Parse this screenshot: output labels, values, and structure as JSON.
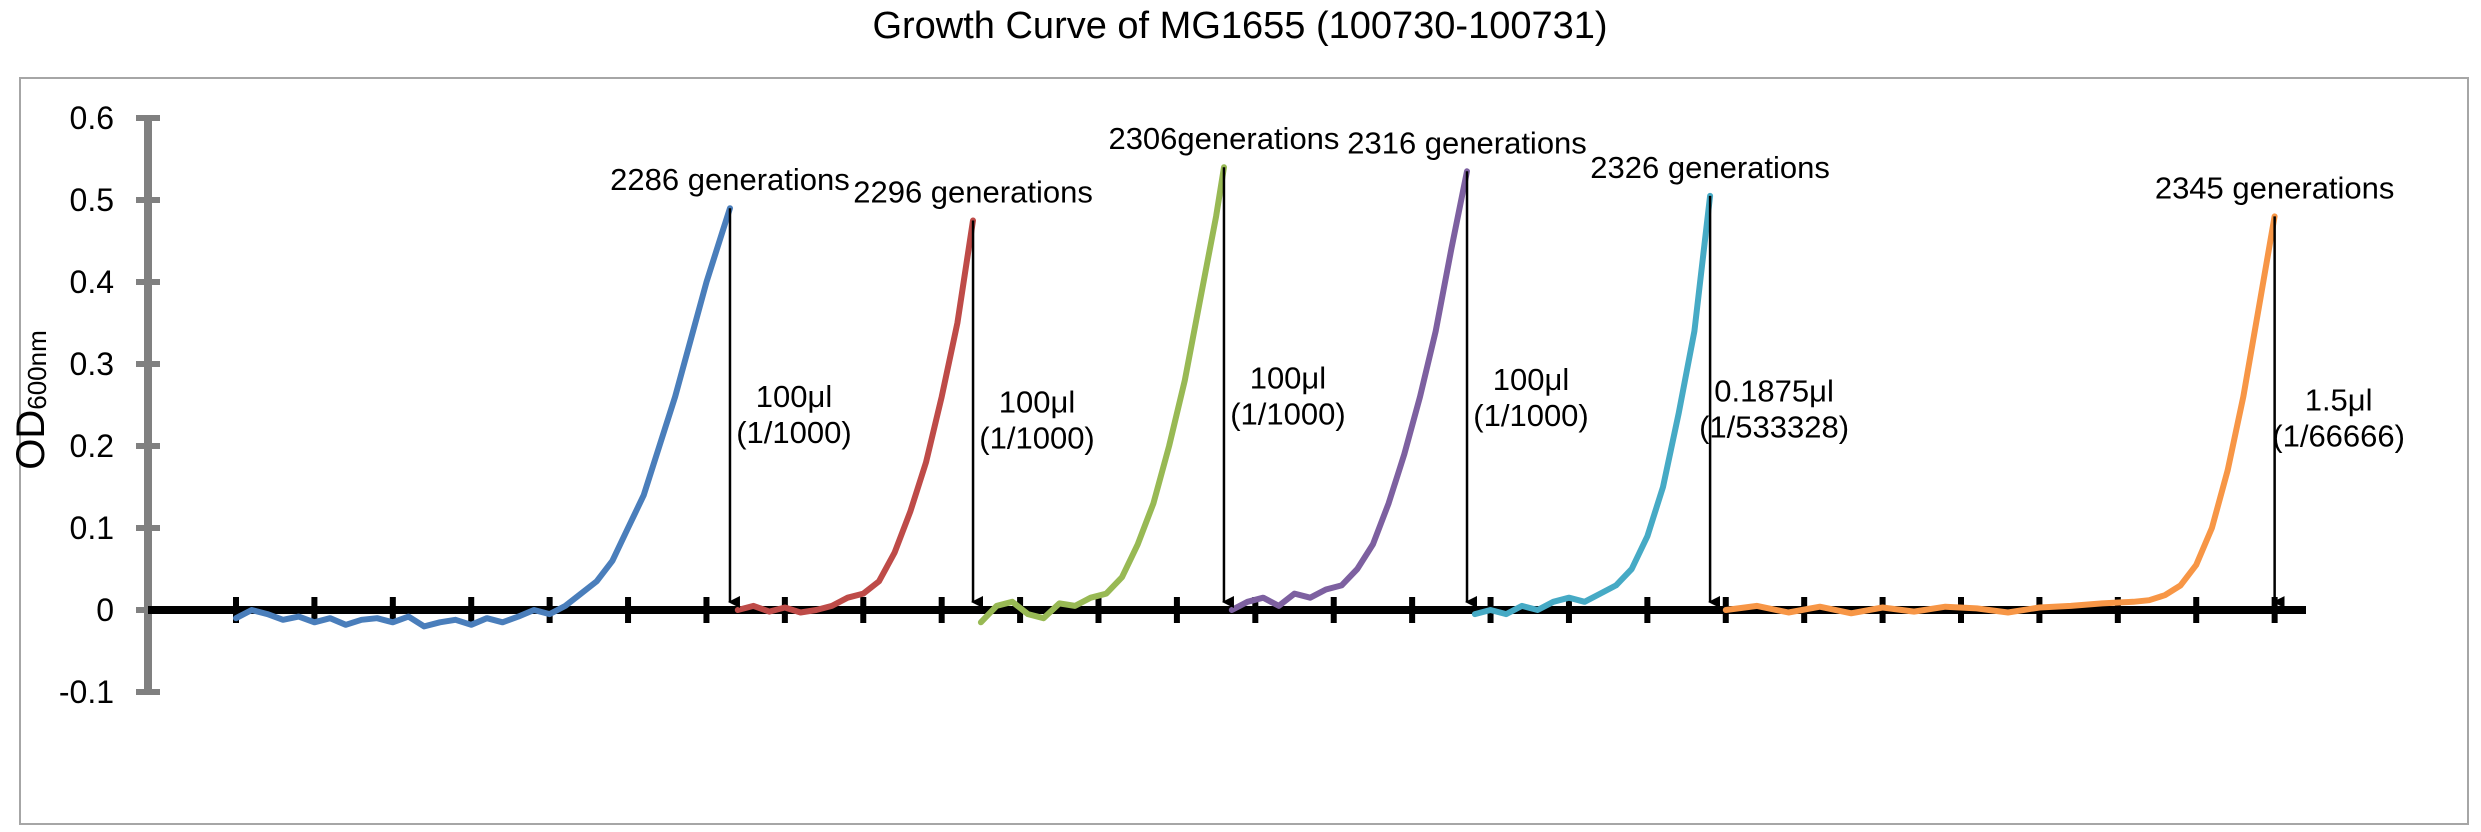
{
  "chart_data": {
    "type": "line",
    "title": "Growth Curve of MG1655 (100730-100731)",
    "ylabel": {
      "main": "OD",
      "sub": "600nm"
    },
    "ylim": [
      -0.1,
      0.6
    ],
    "yticks": [
      -0.1,
      0,
      0.1,
      0.2,
      0.3,
      0.4,
      0.5,
      0.6
    ],
    "ytick_labels": [
      "-0.1",
      "0",
      "0.1",
      "0.2",
      "0.3",
      "0.4",
      "0.5",
      "0.6"
    ],
    "xlim": [
      0,
      132
    ],
    "xticks": [
      0,
      5,
      10,
      15,
      20,
      25,
      30,
      35,
      40,
      45,
      50,
      55,
      60,
      65,
      70,
      75,
      80,
      85,
      90,
      95,
      100,
      105,
      110,
      115,
      120,
      125,
      130
    ],
    "grid": false,
    "legend": "none",
    "series": [
      {
        "color": "#4a7ebb",
        "x": [
          0,
          1,
          2,
          3,
          4,
          5,
          6,
          7,
          8,
          9,
          10,
          11,
          12,
          13,
          14,
          15,
          16,
          17,
          18,
          19,
          20,
          21,
          22,
          23,
          24,
          25,
          26,
          27,
          28,
          29,
          30,
          31,
          31.5
        ],
        "values": [
          -0.01,
          0.0,
          -0.005,
          -0.012,
          -0.008,
          -0.015,
          -0.01,
          -0.018,
          -0.012,
          -0.01,
          -0.015,
          -0.008,
          -0.02,
          -0.015,
          -0.012,
          -0.018,
          -0.01,
          -0.015,
          -0.008,
          0.0,
          -0.005,
          0.005,
          0.02,
          0.035,
          0.06,
          0.1,
          0.14,
          0.2,
          0.26,
          0.33,
          0.4,
          0.46,
          0.49
        ]
      },
      {
        "color": "#be4b48",
        "x": [
          32,
          33,
          34,
          35,
          36,
          37,
          38,
          39,
          40,
          41,
          42,
          43,
          44,
          45,
          46,
          47
        ],
        "values": [
          0.0,
          0.005,
          -0.002,
          0.003,
          -0.003,
          0.0,
          0.005,
          0.015,
          0.02,
          0.035,
          0.07,
          0.12,
          0.18,
          0.26,
          0.35,
          0.475
        ]
      },
      {
        "color": "#98b954",
        "x": [
          47.5,
          48.5,
          49.5,
          50.5,
          51.5,
          52.5,
          53.5,
          54.5,
          55.5,
          56.5,
          57.5,
          58.5,
          59.5,
          60.5,
          61.5,
          62.5,
          63
        ],
        "values": [
          -0.015,
          0.005,
          0.01,
          -0.005,
          -0.01,
          0.008,
          0.005,
          0.015,
          0.02,
          0.04,
          0.08,
          0.13,
          0.2,
          0.28,
          0.38,
          0.48,
          0.54
        ]
      },
      {
        "color": "#7d60a0",
        "x": [
          63.5,
          64.5,
          65.5,
          66.5,
          67.5,
          68.5,
          69.5,
          70.5,
          71.5,
          72.5,
          73.5,
          74.5,
          75.5,
          76.5,
          77.5,
          78.5
        ],
        "values": [
          0.0,
          0.01,
          0.015,
          0.005,
          0.02,
          0.015,
          0.025,
          0.03,
          0.05,
          0.08,
          0.13,
          0.19,
          0.26,
          0.34,
          0.44,
          0.535
        ]
      },
      {
        "color": "#46aac5",
        "x": [
          79,
          80,
          81,
          82,
          83,
          84,
          85,
          86,
          87,
          88,
          89,
          90,
          91,
          92,
          93,
          94
        ],
        "values": [
          -0.005,
          0.0,
          -0.005,
          0.005,
          0.0,
          0.01,
          0.015,
          0.01,
          0.02,
          0.03,
          0.05,
          0.09,
          0.15,
          0.24,
          0.34,
          0.505
        ]
      },
      {
        "color": "#f79646",
        "x": [
          95,
          97,
          99,
          101,
          103,
          105,
          107,
          109,
          111,
          113,
          115,
          117,
          119,
          121,
          122,
          123,
          124,
          125,
          126,
          127,
          128,
          129,
          130
        ],
        "values": [
          0.0,
          0.005,
          -0.003,
          0.004,
          -0.004,
          0.003,
          -0.002,
          0.004,
          0.002,
          -0.003,
          0.003,
          0.005,
          0.008,
          0.01,
          0.012,
          0.018,
          0.03,
          0.055,
          0.1,
          0.17,
          0.26,
          0.37,
          0.48
        ]
      }
    ],
    "annotations": [
      {
        "label": "2286 generations",
        "arrow_x": 31.5,
        "top_y": 0.49,
        "amount": "100μl",
        "ratio": "(1/1000)"
      },
      {
        "label": "2296 generations",
        "arrow_x": 47,
        "top_y": 0.475,
        "amount": "100μl",
        "ratio": "(1/1000)"
      },
      {
        "label": "2306generations",
        "arrow_x": 63,
        "top_y": 0.54,
        "amount": "100μl",
        "ratio": "(1/1000)"
      },
      {
        "label": "2316 generations",
        "arrow_x": 78.5,
        "top_y": 0.535,
        "amount": "100μl",
        "ratio": "(1/1000)"
      },
      {
        "label": "2326 generations",
        "arrow_x": 94,
        "top_y": 0.505,
        "amount": "0.1875μl",
        "ratio": "(1/533328)"
      },
      {
        "label": "2345 generations",
        "arrow_x": 130,
        "top_y": 0.48,
        "amount": "1.5μl",
        "ratio": "(1/66666)"
      }
    ]
  }
}
